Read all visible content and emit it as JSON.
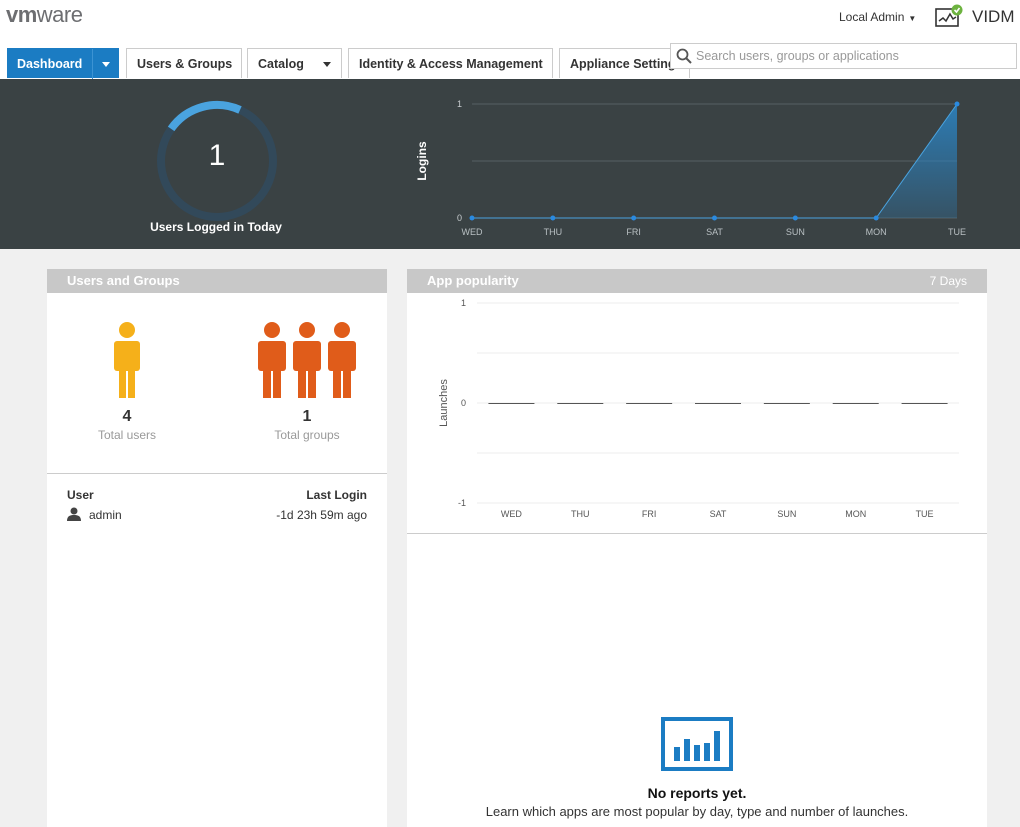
{
  "header": {
    "logo_vm": "vm",
    "logo_ware": "ware",
    "user_label": "Local Admin",
    "app_label": "VIDM",
    "search_placeholder": "Search users, groups or applications"
  },
  "nav": {
    "tabs": [
      {
        "label": "Dashboard",
        "active": true,
        "dropdown": true
      },
      {
        "label": "Users & Groups",
        "active": false,
        "dropdown": false
      },
      {
        "label": "Catalog",
        "active": false,
        "dropdown": true
      },
      {
        "label": "Identity & Access Management",
        "active": false,
        "dropdown": false
      },
      {
        "label": "Appliance Settings",
        "active": false,
        "dropdown": false
      }
    ]
  },
  "stats": {
    "users_logged_in_today": "1",
    "users_logged_in_label": "Users Logged in Today",
    "gauge_fraction": 0.22,
    "accent_color": "#4aa3df"
  },
  "chart_data": [
    {
      "type": "area",
      "ylabel": "Logins",
      "categories": [
        "WED",
        "THU",
        "FRI",
        "SAT",
        "SUN",
        "MON",
        "TUE"
      ],
      "values": [
        0,
        0,
        0,
        0,
        0,
        0,
        1
      ],
      "yticks": [
        "0",
        "1"
      ],
      "ylim": [
        0,
        1
      ],
      "grid": true
    },
    {
      "type": "bar",
      "ylabel": "Launches",
      "categories": [
        "WED",
        "THU",
        "FRI",
        "SAT",
        "SUN",
        "MON",
        "TUE"
      ],
      "values": [
        0,
        0,
        0,
        0,
        0,
        0,
        0
      ],
      "yticks": [
        "1",
        "0",
        "-1"
      ],
      "ylim": [
        -1,
        1
      ],
      "grid": true
    }
  ],
  "users_groups": {
    "title": "Users and Groups",
    "total_users": "4",
    "total_users_label": "Total users",
    "total_groups": "1",
    "total_groups_label": "Total groups",
    "user_color": "#f5b01a",
    "group_color": "#e05c1a",
    "col_user": "User",
    "col_last_login": "Last Login",
    "rows": [
      {
        "user": "admin",
        "last_login": "-1d 23h 59m ago"
      }
    ]
  },
  "app_popularity": {
    "title": "App popularity",
    "range": "7 Days",
    "no_reports_title": "No reports yet.",
    "no_reports_desc": "Learn which apps are most popular by day, type and number of launches."
  }
}
